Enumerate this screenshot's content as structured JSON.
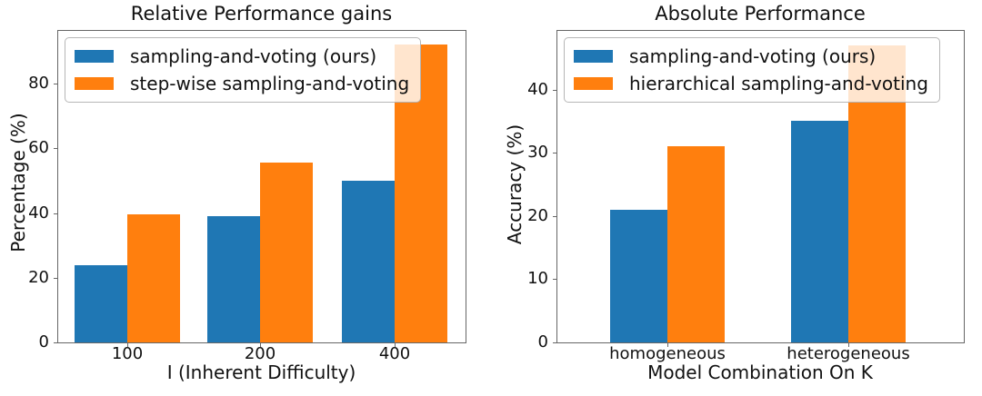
{
  "figure": {
    "background_color": "#ffffff",
    "bar_blue": "#1f77b4",
    "bar_orange": "#ff7f0e"
  },
  "chart_data": [
    {
      "type": "bar",
      "title": "Relative Performance gains",
      "xlabel": "I (Inherent Difficulty)",
      "ylabel": "Percentage (%)",
      "categories": [
        "100",
        "200",
        "400"
      ],
      "series": [
        {
          "name": "sampling-and-voting (ours)",
          "color": "#1f77b4",
          "values": [
            24,
            39,
            50
          ]
        },
        {
          "name": "step-wise sampling-and-voting",
          "color": "#ff7f0e",
          "values": [
            39.5,
            55.5,
            92
          ]
        }
      ],
      "yticks": [
        "0",
        "20",
        "40",
        "60",
        "80"
      ],
      "ytick_values": [
        0,
        20,
        40,
        60,
        80
      ],
      "ylim": [
        0,
        96.6
      ],
      "legend_position": "upper left",
      "grid": false
    },
    {
      "type": "bar",
      "title": "Absolute Performance",
      "xlabel": "Model Combination On K",
      "ylabel": "Accuracy (%)",
      "categories": [
        "homogeneous",
        "heterogeneous"
      ],
      "series": [
        {
          "name": "sampling-and-voting (ours)",
          "color": "#1f77b4",
          "values": [
            21,
            35
          ]
        },
        {
          "name": "hierarchical sampling-and-voting",
          "color": "#ff7f0e",
          "values": [
            31,
            47
          ]
        }
      ],
      "yticks": [
        "0",
        "10",
        "20",
        "30",
        "40"
      ],
      "ytick_values": [
        0,
        10,
        20,
        30,
        40
      ],
      "ylim": [
        0,
        49.4
      ],
      "legend_position": "upper left",
      "grid": false
    }
  ]
}
